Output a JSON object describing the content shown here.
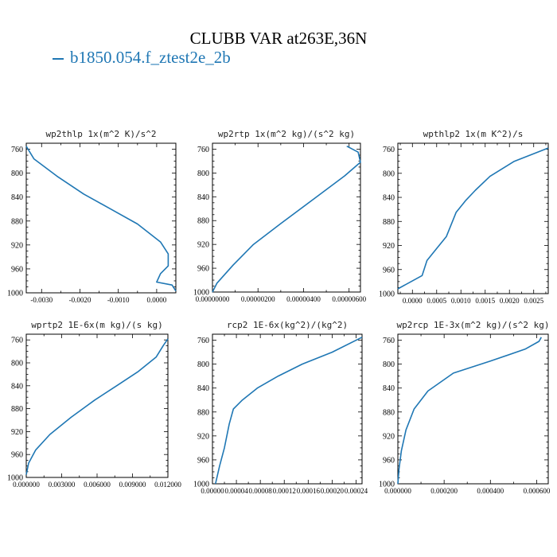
{
  "figure": {
    "title": "CLUBB VAR at263E,36N",
    "legend_label": "b1850.054.f_ztest2e_2b",
    "series_color": "#1f77b4"
  },
  "chart_data": [
    {
      "type": "line",
      "title": "wp2thlp  1x(m^2 K)/s^2",
      "xlim": [
        -0.0034,
        0.0005
      ],
      "ylim": [
        1000,
        750
      ],
      "xticks": [
        -0.003,
        -0.002,
        -0.001,
        0.0
      ],
      "xtick_labels": [
        "-0.0030",
        "-0.0020",
        "-0.0010",
        "0.0000"
      ],
      "yticks": [
        760,
        800,
        840,
        880,
        920,
        960,
        1000
      ],
      "series": [
        {
          "x": [
            -0.0034,
            -0.0032,
            -0.0026,
            -0.0019,
            -0.0012,
            -0.0005,
            0.0001,
            0.0003,
            0.0003,
            0.0001,
            0.0,
            0.0004,
            0.0005
          ],
          "y": [
            755,
            776,
            805,
            835,
            860,
            885,
            915,
            935,
            955,
            968,
            982,
            987,
            997
          ]
        }
      ]
    },
    {
      "type": "line",
      "title": "wp2rtp  1x(m^2 kg)/(s^2 kg)",
      "xlim": [
        0.0,
        6.5e-06
      ],
      "ylim": [
        1000,
        750
      ],
      "xticks": [
        0.0,
        2e-06,
        4e-06,
        6e-06
      ],
      "xtick_labels": [
        "0.00000000",
        "0.00000200",
        "0.00000400",
        "0.00000600"
      ],
      "yticks": [
        760,
        800,
        840,
        880,
        920,
        960,
        1000
      ],
      "series": [
        {
          "x": [
            0.0,
            2e-07,
            9e-07,
            1.8e-06,
            3e-06,
            4.4e-06,
            5.8e-06,
            6.5e-06,
            6.4e-06,
            5.9e-06
          ],
          "y": [
            1000,
            985,
            955,
            920,
            885,
            845,
            805,
            782,
            765,
            755
          ]
        }
      ]
    },
    {
      "type": "line",
      "title": "wpthlp2  1x(m K^2)/s",
      "xlim": [
        -0.0003,
        0.0028
      ],
      "ylim": [
        1000,
        750
      ],
      "xticks": [
        0.0,
        0.0005,
        0.001,
        0.0015,
        0.002,
        0.0025
      ],
      "xtick_labels": [
        "0.0000",
        "0.0005",
        "0.0010",
        "0.0015",
        "0.0020",
        "0.0025"
      ],
      "yticks": [
        760,
        800,
        840,
        880,
        920,
        960,
        1000
      ],
      "series": [
        {
          "x": [
            -0.0003,
            0.0002,
            0.0003,
            0.0005,
            0.0007,
            0.0008,
            0.0009,
            0.0011,
            0.0013,
            0.0016,
            0.0021,
            0.0028
          ],
          "y": [
            992,
            970,
            945,
            925,
            905,
            885,
            865,
            845,
            828,
            805,
            780,
            758
          ]
        }
      ]
    },
    {
      "type": "line",
      "title": "wprtp2  1E-6x(m kg)/(s kg)",
      "xlim": [
        0.0,
        0.012
      ],
      "ylim": [
        1000,
        750
      ],
      "xticks": [
        0.0,
        0.003,
        0.006,
        0.009,
        0.012
      ],
      "xtick_labels": [
        "0.000000",
        "0.003000",
        "0.006000",
        "0.009000",
        "0.012000"
      ],
      "yticks": [
        760,
        800,
        840,
        880,
        920,
        960,
        1000
      ],
      "series": [
        {
          "x": [
            0.0,
            0.0002,
            0.0008,
            0.002,
            0.0038,
            0.0058,
            0.0078,
            0.0095,
            0.011,
            0.0116,
            0.012
          ],
          "y": [
            995,
            975,
            952,
            925,
            895,
            865,
            838,
            815,
            790,
            770,
            758
          ]
        }
      ]
    },
    {
      "type": "line",
      "title": "rcp2  1E-6x(kg^2)/(kg^2)",
      "xlim": [
        0.0,
        0.00025
      ],
      "ylim": [
        1000,
        750
      ],
      "xticks": [
        0.0,
        4e-05,
        8e-05,
        0.00012,
        0.00016,
        0.0002,
        0.00024
      ],
      "xtick_labels": [
        "0.00000",
        "0.00004",
        "0.00008",
        "0.00012",
        "0.00016",
        "0.00020",
        "0.00024"
      ],
      "yticks": [
        760,
        800,
        840,
        880,
        920,
        960,
        1000
      ],
      "series": [
        {
          "x": [
            5e-06,
            1.2e-05,
            2e-05,
            2.8e-05,
            3.5e-05,
            5e-05,
            7.5e-05,
            0.00011,
            0.00015,
            0.0002,
            0.00025
          ],
          "y": [
            1000,
            970,
            940,
            900,
            875,
            860,
            840,
            820,
            800,
            780,
            755
          ]
        }
      ]
    },
    {
      "type": "line",
      "title": "wp2rcp  1E-3x(m^2 kg)/(s^2 kg)",
      "xlim": [
        0.0,
        0.00065
      ],
      "ylim": [
        1000,
        750
      ],
      "xticks": [
        0.0,
        0.0002,
        0.0004,
        0.0006
      ],
      "xtick_labels": [
        "0.000000",
        "0.000200",
        "0.000400",
        "0.000600"
      ],
      "yticks": [
        760,
        800,
        840,
        880,
        920,
        960,
        1000
      ],
      "series": [
        {
          "x": [
            0.0,
            5e-06,
            1.5e-05,
            3.5e-05,
            7e-05,
            0.00013,
            0.00024,
            0.0004,
            0.00055,
            0.00061,
            0.00062
          ],
          "y": [
            1000,
            975,
            945,
            910,
            875,
            845,
            815,
            795,
            775,
            762,
            755
          ]
        }
      ]
    }
  ]
}
